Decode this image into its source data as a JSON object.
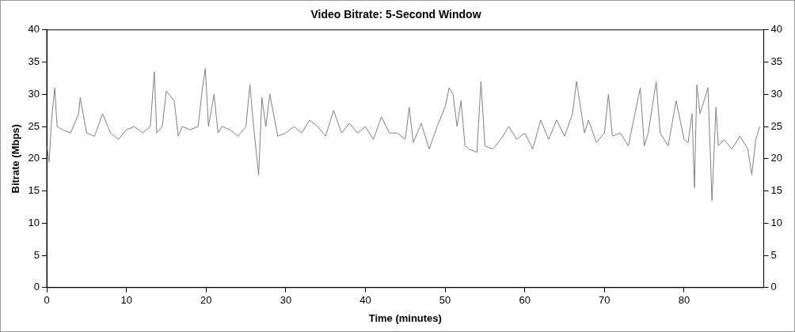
{
  "chart_data": {
    "type": "line",
    "title": "Video Bitrate: 5-Second Window",
    "xlabel": "Time (minutes)",
    "ylabel": "Bitrate (Mbps)",
    "x": [
      0,
      0.3,
      0.6,
      1,
      1.3,
      2,
      3,
      4,
      4.2,
      5,
      6,
      7,
      8,
      9,
      10,
      11,
      12,
      13,
      13.5,
      13.8,
      14.5,
      15,
      16,
      16.5,
      17,
      18,
      19,
      19.5,
      19.9,
      20.3,
      21,
      21.5,
      22,
      23,
      24,
      25,
      25.5,
      26,
      26.6,
      27,
      27.5,
      28,
      29,
      30,
      31,
      32,
      33,
      34,
      35,
      36,
      37,
      38,
      39,
      40,
      41,
      42,
      43,
      44,
      45,
      45.5,
      46,
      47,
      48,
      49,
      50,
      50.5,
      51,
      51.5,
      52,
      52.5,
      53,
      54,
      54.5,
      55,
      56,
      57,
      58,
      59,
      60,
      61,
      62,
      63,
      64,
      65,
      66,
      66.5,
      67,
      67.5,
      68,
      69,
      70,
      70.5,
      71,
      72,
      73,
      74,
      74.5,
      75,
      75.5,
      76,
      76.5,
      77,
      78,
      79,
      80,
      80.5,
      81,
      81.3,
      81.6,
      82,
      83,
      83.5,
      84,
      84.3,
      85,
      86,
      87,
      88,
      88.5,
      89,
      89.5
    ],
    "series": [
      {
        "color": "#808080",
        "values": [
          22,
          19.5,
          26,
          31,
          25,
          24.5,
          24,
          27,
          29.5,
          24,
          23.5,
          27,
          24,
          23,
          24.5,
          25,
          24,
          25,
          33.5,
          24,
          25,
          30.5,
          29,
          23.5,
          25,
          24.5,
          25,
          30.5,
          34,
          25,
          30,
          24,
          25,
          24.5,
          23.5,
          25,
          31.5,
          24.5,
          17.5,
          29.5,
          25,
          30,
          23.5,
          24,
          25,
          24,
          26,
          25,
          23.5,
          27.5,
          24,
          25.5,
          24,
          25,
          23,
          26.5,
          24,
          24,
          23,
          28,
          22.5,
          25.5,
          21.5,
          25,
          28,
          31,
          30,
          25,
          29,
          22,
          21.5,
          21,
          32,
          22,
          21.5,
          23,
          25,
          23,
          24,
          21.5,
          26,
          23,
          26,
          23.5,
          27,
          32,
          28,
          24,
          26,
          22.5,
          24,
          30,
          23.5,
          24,
          22,
          28,
          31,
          22,
          24,
          28,
          32,
          24,
          22,
          29,
          23,
          22.5,
          27,
          15.5,
          31.5,
          27,
          31,
          13.5,
          28,
          22,
          23,
          21.5,
          23.5,
          21.5,
          17.5,
          23,
          25
        ]
      }
    ],
    "xlim": [
      0,
      90
    ],
    "xticks": [
      0,
      10,
      20,
      30,
      40,
      50,
      60,
      70,
      80
    ],
    "ylim": [
      0,
      40
    ],
    "yticks": [
      0,
      5,
      10,
      15,
      20,
      25,
      30,
      35,
      40
    ],
    "y2lim": [
      0,
      40
    ],
    "y2ticks": [
      0,
      5,
      10,
      15,
      20,
      25,
      30,
      35,
      40
    ],
    "grid": false,
    "legend": false,
    "marker": "none",
    "line_style": "solid"
  }
}
